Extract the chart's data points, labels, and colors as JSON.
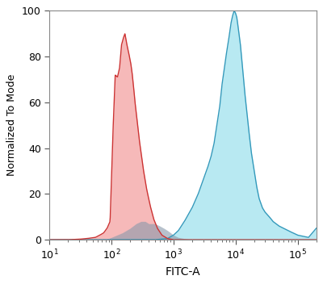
{
  "xlabel": "FITC-A",
  "ylabel": "Normalized To Mode",
  "xlim_log": [
    10,
    200000
  ],
  "ylim": [
    0,
    100
  ],
  "yticks": [
    0,
    20,
    40,
    60,
    80,
    100
  ],
  "xticks": [
    10,
    100,
    1000,
    10000,
    100000
  ],
  "red_color": "#f08080",
  "red_edge_color": "#cc3333",
  "blue_color": "#7fd8e8",
  "blue_edge_color": "#3399bb",
  "overlap_color": "#8899aa",
  "background_color": "#ffffff",
  "red_x": [
    10,
    15,
    20,
    30,
    40,
    55,
    65,
    75,
    85,
    95,
    105,
    115,
    125,
    135,
    145,
    155,
    165,
    175,
    185,
    195,
    205,
    215,
    225,
    240,
    260,
    280,
    300,
    330,
    370,
    420,
    480,
    550,
    650,
    800,
    1000,
    1500,
    2000,
    5000,
    200000
  ],
  "red_y": [
    0,
    0,
    0,
    0.2,
    0.5,
    1,
    2,
    3,
    5,
    8,
    45,
    72,
    71,
    75,
    85,
    88,
    90,
    86,
    83,
    80,
    77,
    73,
    68,
    60,
    52,
    44,
    38,
    30,
    22,
    15,
    9,
    5,
    2,
    0.5,
    0,
    0,
    0,
    0,
    0
  ],
  "blue_x": [
    10,
    100,
    500,
    800,
    1000,
    1200,
    1500,
    2000,
    2500,
    3000,
    3500,
    4000,
    4500,
    5000,
    5500,
    6000,
    7000,
    7500,
    8000,
    8500,
    9000,
    9500,
    10000,
    10500,
    11000,
    12000,
    13000,
    14000,
    16000,
    18000,
    20000,
    22000,
    24000,
    27000,
    30000,
    35000,
    40000,
    50000,
    70000,
    100000,
    150000,
    200000
  ],
  "blue_y": [
    0,
    0,
    0,
    0.5,
    2,
    4,
    8,
    14,
    20,
    26,
    31,
    36,
    42,
    50,
    57,
    67,
    80,
    85,
    90,
    95,
    98,
    100,
    99,
    97,
    93,
    85,
    75,
    65,
    50,
    38,
    30,
    23,
    18,
    14,
    12,
    10,
    8,
    6,
    4,
    2,
    1,
    5
  ],
  "overlap_x": [
    60,
    80,
    100,
    150,
    200,
    250,
    300,
    350,
    400,
    500,
    600,
    700,
    800,
    900,
    1000,
    1200,
    1500,
    2000
  ],
  "overlap_y": [
    0,
    0,
    1,
    3,
    5,
    7,
    8,
    8,
    7,
    7,
    6,
    5,
    4,
    3,
    2,
    1,
    0.5,
    0
  ]
}
